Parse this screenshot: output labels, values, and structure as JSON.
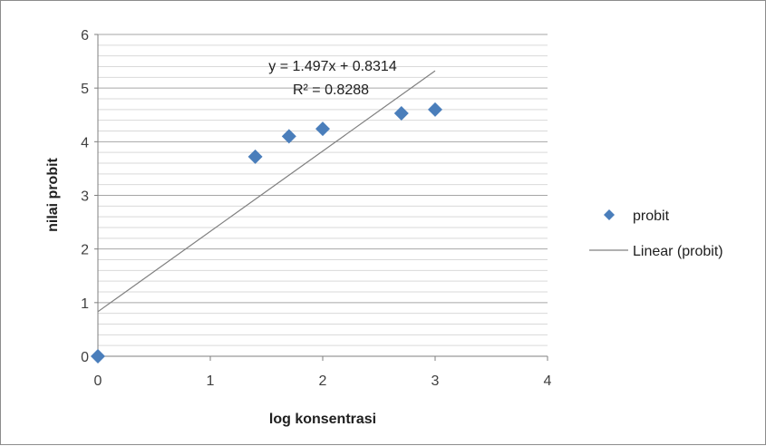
{
  "chart_data": {
    "type": "scatter",
    "xlabel": "log konsentrasi",
    "ylabel": "nilai probit",
    "xlim": [
      0,
      4
    ],
    "ylim": [
      0,
      6
    ],
    "x_ticks": [
      "0",
      "1",
      "2",
      "3",
      "4"
    ],
    "y_ticks": [
      "0",
      "1",
      "2",
      "3",
      "4",
      "5",
      "6"
    ],
    "grid": "horizontal",
    "legend_position": "right",
    "series": [
      {
        "name": "probit",
        "marker": "diamond",
        "color": "#4a7ebb",
        "x": [
          0,
          1.4,
          1.7,
          2.0,
          2.7,
          3.0
        ],
        "y": [
          0,
          3.72,
          4.1,
          4.24,
          4.53,
          4.6
        ]
      }
    ],
    "trendline": {
      "name": "Linear (probit)",
      "color": "#808080",
      "slope": 1.497,
      "intercept": 0.8314,
      "x_range": [
        0,
        3
      ],
      "equation": "y = 1.497x + 0.8314",
      "r_squared": "R² = 0.8288"
    }
  }
}
